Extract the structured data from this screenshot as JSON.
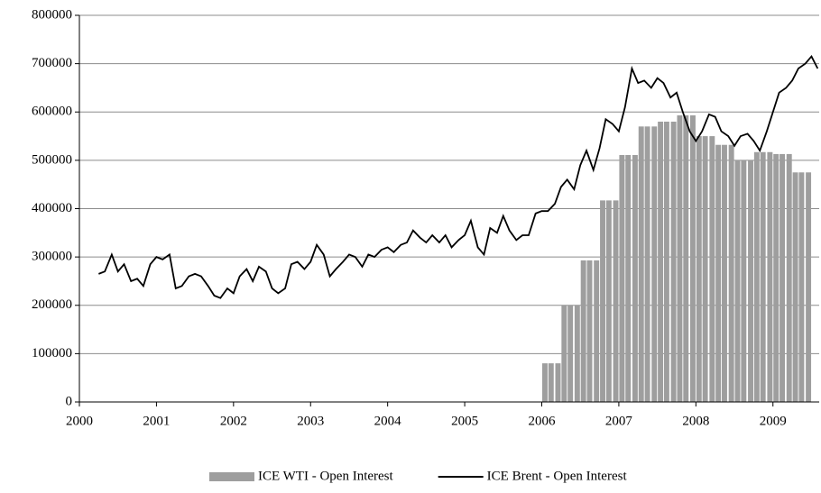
{
  "chart_data": {
    "type": "bar-line",
    "xlim": [
      2000,
      2009.6
    ],
    "xticks": [
      2000,
      2001,
      2002,
      2003,
      2004,
      2005,
      2006,
      2007,
      2008,
      2009
    ],
    "ylim": [
      0,
      800000
    ],
    "yticks": [
      0,
      100000,
      200000,
      300000,
      400000,
      500000,
      600000,
      700000,
      800000
    ],
    "grid": true,
    "legend": "bottom",
    "series": [
      {
        "name": "ICE WTI - Open Interest",
        "type": "bar",
        "color": "#9e9e9e",
        "x": [
          2006,
          2006.08,
          2006.17,
          2006.25,
          2006.33,
          2006.42,
          2006.5,
          2006.58,
          2006.67,
          2006.75,
          2006.83,
          2006.92,
          2007,
          2007.08,
          2007.17,
          2007.25,
          2007.33,
          2007.42,
          2007.5,
          2007.58,
          2007.67,
          2007.75,
          2007.83,
          2007.92,
          2008,
          2008.08,
          2008.17,
          2008.25,
          2008.33,
          2008.42,
          2008.5,
          2008.58,
          2008.67,
          2008.75,
          2008.83,
          2008.92,
          2009,
          2009.08,
          2009.17,
          2009.25,
          2009.33,
          2009.42
        ],
        "values": [
          80000,
          80000,
          80000,
          200000,
          200000,
          200000,
          293000,
          293000,
          293000,
          417000,
          417000,
          417000,
          511000,
          511000,
          511000,
          570000,
          570000,
          570000,
          580000,
          580000,
          580000,
          593000,
          593000,
          593000,
          550000,
          550000,
          550000,
          532000,
          532000,
          532000,
          500000,
          500000,
          500000,
          517000,
          517000,
          517000,
          513000,
          513000,
          513000,
          475000,
          475000,
          475000
        ]
      },
      {
        "name": "ICE Brent - Open Interest",
        "type": "line",
        "color": "#000000",
        "x": [
          2000.25,
          2000.33,
          2000.42,
          2000.5,
          2000.58,
          2000.67,
          2000.75,
          2000.83,
          2000.92,
          2001,
          2001.08,
          2001.17,
          2001.25,
          2001.33,
          2001.42,
          2001.5,
          2001.58,
          2001.67,
          2001.75,
          2001.83,
          2001.92,
          2002,
          2002.08,
          2002.17,
          2002.25,
          2002.33,
          2002.42,
          2002.5,
          2002.58,
          2002.67,
          2002.75,
          2002.83,
          2002.92,
          2003,
          2003.08,
          2003.17,
          2003.25,
          2003.33,
          2003.42,
          2003.5,
          2003.58,
          2003.67,
          2003.75,
          2003.83,
          2003.92,
          2004,
          2004.08,
          2004.17,
          2004.25,
          2004.33,
          2004.42,
          2004.5,
          2004.58,
          2004.67,
          2004.75,
          2004.83,
          2004.92,
          2005,
          2005.08,
          2005.17,
          2005.25,
          2005.33,
          2005.42,
          2005.5,
          2005.58,
          2005.67,
          2005.75,
          2005.83,
          2005.92,
          2006,
          2006.08,
          2006.17,
          2006.25,
          2006.33,
          2006.42,
          2006.5,
          2006.58,
          2006.67,
          2006.75,
          2006.83,
          2006.92,
          2007,
          2007.08,
          2007.17,
          2007.25,
          2007.33,
          2007.42,
          2007.5,
          2007.58,
          2007.67,
          2007.75,
          2007.83,
          2007.92,
          2008,
          2008.08,
          2008.17,
          2008.25,
          2008.33,
          2008.42,
          2008.5,
          2008.58,
          2008.67,
          2008.75,
          2008.83,
          2008.92,
          2009,
          2009.08,
          2009.17,
          2009.25,
          2009.33,
          2009.42,
          2009.5,
          2009.58
        ],
        "values": [
          265000,
          270000,
          305000,
          270000,
          285000,
          250000,
          255000,
          240000,
          285000,
          300000,
          295000,
          305000,
          235000,
          240000,
          260000,
          265000,
          260000,
          240000,
          220000,
          215000,
          235000,
          225000,
          260000,
          275000,
          250000,
          280000,
          270000,
          235000,
          225000,
          235000,
          285000,
          290000,
          275000,
          290000,
          325000,
          305000,
          260000,
          275000,
          290000,
          305000,
          300000,
          280000,
          305000,
          300000,
          315000,
          320000,
          310000,
          325000,
          330000,
          355000,
          340000,
          330000,
          345000,
          330000,
          345000,
          320000,
          335000,
          345000,
          375000,
          320000,
          305000,
          360000,
          350000,
          385000,
          355000,
          335000,
          345000,
          345000,
          390000,
          395000,
          395000,
          410000,
          445000,
          460000,
          440000,
          490000,
          520000,
          480000,
          525000,
          585000,
          575000,
          560000,
          610000,
          690000,
          660000,
          665000,
          650000,
          670000,
          660000,
          630000,
          640000,
          600000,
          560000,
          540000,
          560000,
          595000,
          590000,
          560000,
          550000,
          530000,
          550000,
          555000,
          540000,
          520000,
          560000,
          600000,
          640000,
          650000,
          665000,
          690000,
          700000,
          715000,
          690000
        ]
      }
    ]
  }
}
